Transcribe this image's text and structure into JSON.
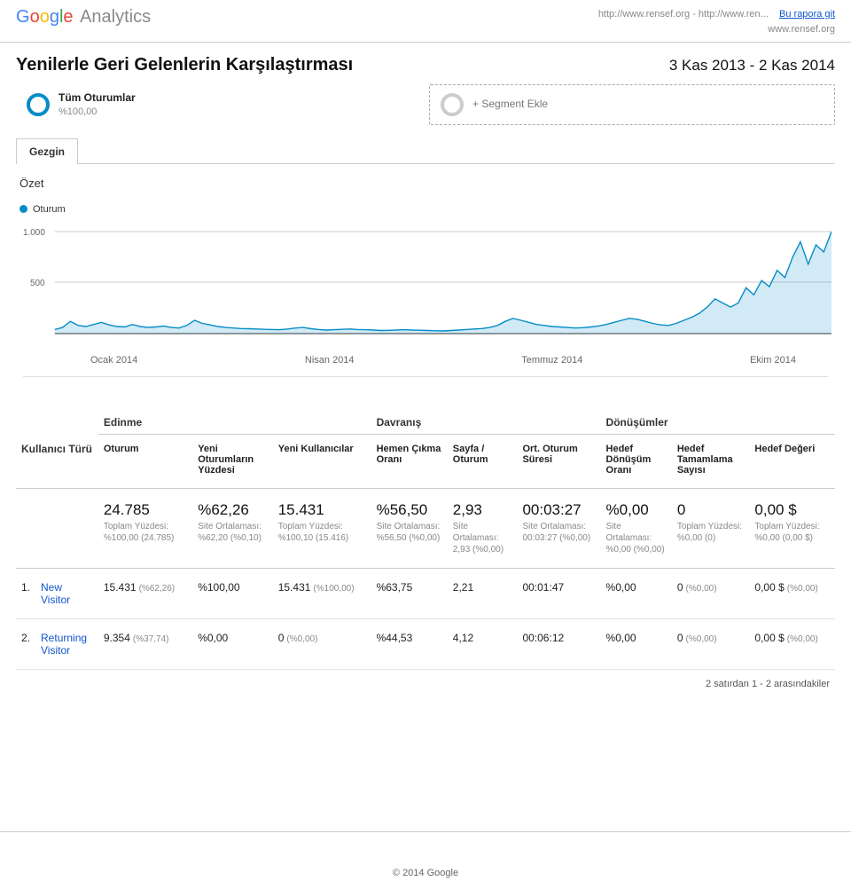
{
  "header": {
    "brand_google": "Google",
    "brand_suffix": "Analytics",
    "url_line": "http://www.rensef.org - http://www.ren...",
    "url_sub": "www.rensef.org",
    "go_report": "Bu rapora git"
  },
  "title": {
    "text": "Yenilerle Geri Gelenlerin Karşılaştırması",
    "date_range": "3 Kas 2013 - 2 Kas 2014"
  },
  "segments": {
    "primary": {
      "name": "Tüm Oturumlar",
      "pct": "%100,00",
      "ring_color": "#058dc7"
    },
    "add": {
      "label": "+ Segment Ekle",
      "ring_color": "#cccccc"
    }
  },
  "tabs": {
    "active": "Gezgin",
    "subtitle": "Özet"
  },
  "chart": {
    "type": "line",
    "legend_label": "Oturum",
    "y_ticks": [
      "1.000",
      "500"
    ],
    "y_max": 1000,
    "x_labels": [
      "Ocak 2014",
      "Nisan 2014",
      "Temmuz 2014",
      "Ekim 2014"
    ],
    "line_color": "#058dc7",
    "area_opacity": 0.18,
    "grid_color": "#cccccc",
    "baseline_color": "#333333",
    "background_color": "#ffffff",
    "values": [
      40,
      60,
      120,
      80,
      70,
      90,
      110,
      85,
      70,
      65,
      90,
      70,
      60,
      65,
      75,
      60,
      55,
      80,
      130,
      100,
      85,
      70,
      60,
      55,
      50,
      48,
      45,
      42,
      40,
      38,
      45,
      55,
      60,
      48,
      40,
      35,
      38,
      42,
      45,
      40,
      38,
      35,
      30,
      32,
      35,
      38,
      35,
      33,
      30,
      28,
      26,
      30,
      35,
      40,
      45,
      50,
      60,
      80,
      120,
      150,
      130,
      110,
      90,
      80,
      70,
      65,
      60,
      55,
      58,
      65,
      75,
      90,
      110,
      130,
      150,
      140,
      120,
      100,
      85,
      80,
      100,
      130,
      160,
      200,
      260,
      340,
      300,
      260,
      300,
      450,
      380,
      520,
      460,
      620,
      550,
      750,
      900,
      680,
      870,
      800,
      1000
    ]
  },
  "table": {
    "group_headers": {
      "c0": "Kullanıcı Türü",
      "g1": "Edinme",
      "g2": "Davranış",
      "g3": "Dönüşümler"
    },
    "columns": {
      "c1": "Oturum",
      "c2": "Yeni Oturumların Yüzdesi",
      "c3": "Yeni Kullanıcılar",
      "c4": "Hemen Çıkma Oranı",
      "c5": "Sayfa / Oturum",
      "c6": "Ort. Oturum Süresi",
      "c7": "Hedef Dönüşüm Oranı",
      "c8": "Hedef Tamamlama Sayısı",
      "c9": "Hedef Değeri"
    },
    "summary": {
      "c1": {
        "big": "24.785",
        "sub": "Toplam Yüzdesi: %100,00 (24.785)"
      },
      "c2": {
        "big": "%62,26",
        "sub": "Site Ortalaması: %62,20 (%0,10)"
      },
      "c3": {
        "big": "15.431",
        "sub": "Toplam Yüzdesi: %100,10 (15.416)"
      },
      "c4": {
        "big": "%56,50",
        "sub": "Site Ortalaması: %56,50 (%0,00)"
      },
      "c5": {
        "big": "2,93",
        "sub": "Site Ortalaması: 2,93 (%0,00)"
      },
      "c6": {
        "big": "00:03:27",
        "sub": "Site Ortalaması: 00:03:27 (%0,00)"
      },
      "c7": {
        "big": "%0,00",
        "sub": "Site Ortalaması: %0,00 (%0,00)"
      },
      "c8": {
        "big": "0",
        "sub": "Toplam Yüzdesi: %0,00 (0)"
      },
      "c9": {
        "big": "0,00 $",
        "sub": "Toplam Yüzdesi: %0,00 (0,00 $)"
      }
    },
    "rows": [
      {
        "idx": "1.",
        "name": "New Visitor",
        "c1": "15.431",
        "c1p": "(%62,26)",
        "c2": "%100,00",
        "c3": "15.431",
        "c3p": "(%100,00)",
        "c4": "%63,75",
        "c5": "2,21",
        "c6": "00:01:47",
        "c7": "%0,00",
        "c8": "0",
        "c8p": "(%0,00)",
        "c9": "0,00 $",
        "c9p": "(%0,00)"
      },
      {
        "idx": "2.",
        "name": "Returning Visitor",
        "c1": "9.354",
        "c1p": "(%37,74)",
        "c2": "%0,00",
        "c3": "0",
        "c3p": "(%0,00)",
        "c4": "%44,53",
        "c5": "4,12",
        "c6": "00:06:12",
        "c7": "%0,00",
        "c8": "0",
        "c8p": "(%0,00)",
        "c9": "0,00 $",
        "c9p": "(%0,00)"
      }
    ],
    "pagination_note": "2 satırdan 1 - 2 arasındakiler"
  },
  "footer": {
    "text": "© 2014 Google"
  }
}
